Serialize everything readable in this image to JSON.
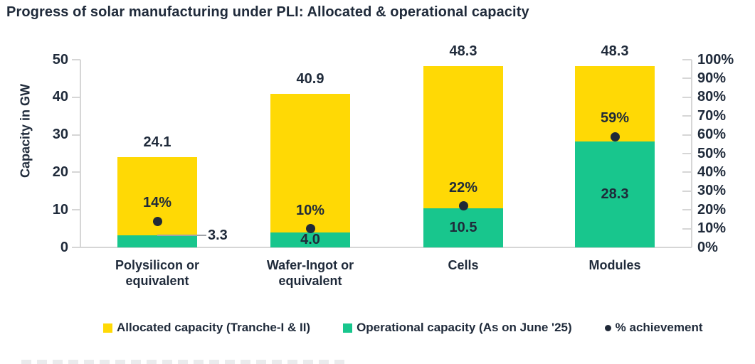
{
  "title": "Progress of solar manufacturing under PLI: Allocated & operational capacity",
  "chart_data": {
    "type": "bar",
    "title": "Progress of solar manufacturing under PLI: Allocated & operational capacity",
    "categories": [
      "Polysilicon or equivalent",
      "Wafer-Ingot or equivalent",
      "Cells",
      "Modules"
    ],
    "series": [
      {
        "name": "Allocated capacity (Tranche-I & II)",
        "type": "bar",
        "color": "#FFD905",
        "values": [
          24.1,
          40.9,
          48.3,
          48.3
        ]
      },
      {
        "name": "Operational capacity (As on June '25)",
        "type": "bar",
        "color": "#18C68D",
        "values": [
          3.3,
          4.0,
          10.5,
          28.3
        ]
      },
      {
        "name": "% achievement",
        "type": "scatter",
        "marker": "dot",
        "color": "#202938",
        "values": [
          14,
          10,
          22,
          59
        ],
        "unit": "%"
      }
    ],
    "value_labels": {
      "allocated": [
        "24.1",
        "40.9",
        "48.3",
        "48.3"
      ],
      "operational": [
        "3.3",
        "4.0",
        "10.5",
        "28.3"
      ],
      "achievement": [
        "14%",
        "10%",
        "22%",
        "59%"
      ]
    },
    "ylabel": "Capacity in GW",
    "y_left": {
      "min": 0,
      "max": 50,
      "ticks": [
        "50",
        "40",
        "30",
        "20",
        "10",
        "0"
      ]
    },
    "y_right": {
      "min": 0,
      "max": 100,
      "ticks": [
        "100%",
        "90%",
        "80%",
        "70%",
        "60%",
        "50%",
        "40%",
        "30%",
        "20%",
        "10%",
        "0%"
      ]
    },
    "grid": false,
    "legend_position": "bottom"
  },
  "legend": {
    "items": [
      {
        "label": "Allocated capacity (Tranche-I & II)",
        "swatch": "square",
        "color": "#FFD905"
      },
      {
        "label": "Operational capacity (As on June '25)",
        "swatch": "square",
        "color": "#18C68D"
      },
      {
        "label": "% achievement",
        "swatch": "dot",
        "color": "#202938"
      }
    ]
  },
  "colors": {
    "title_text": "#1F2A3A",
    "axis_line": "#D6D6D6",
    "leader_line": "#9FA3A8",
    "background": "#FFFFFF",
    "allocated_yellow": "#FFD905",
    "operational_green": "#18C68D",
    "achievement_dot": "#202938"
  }
}
